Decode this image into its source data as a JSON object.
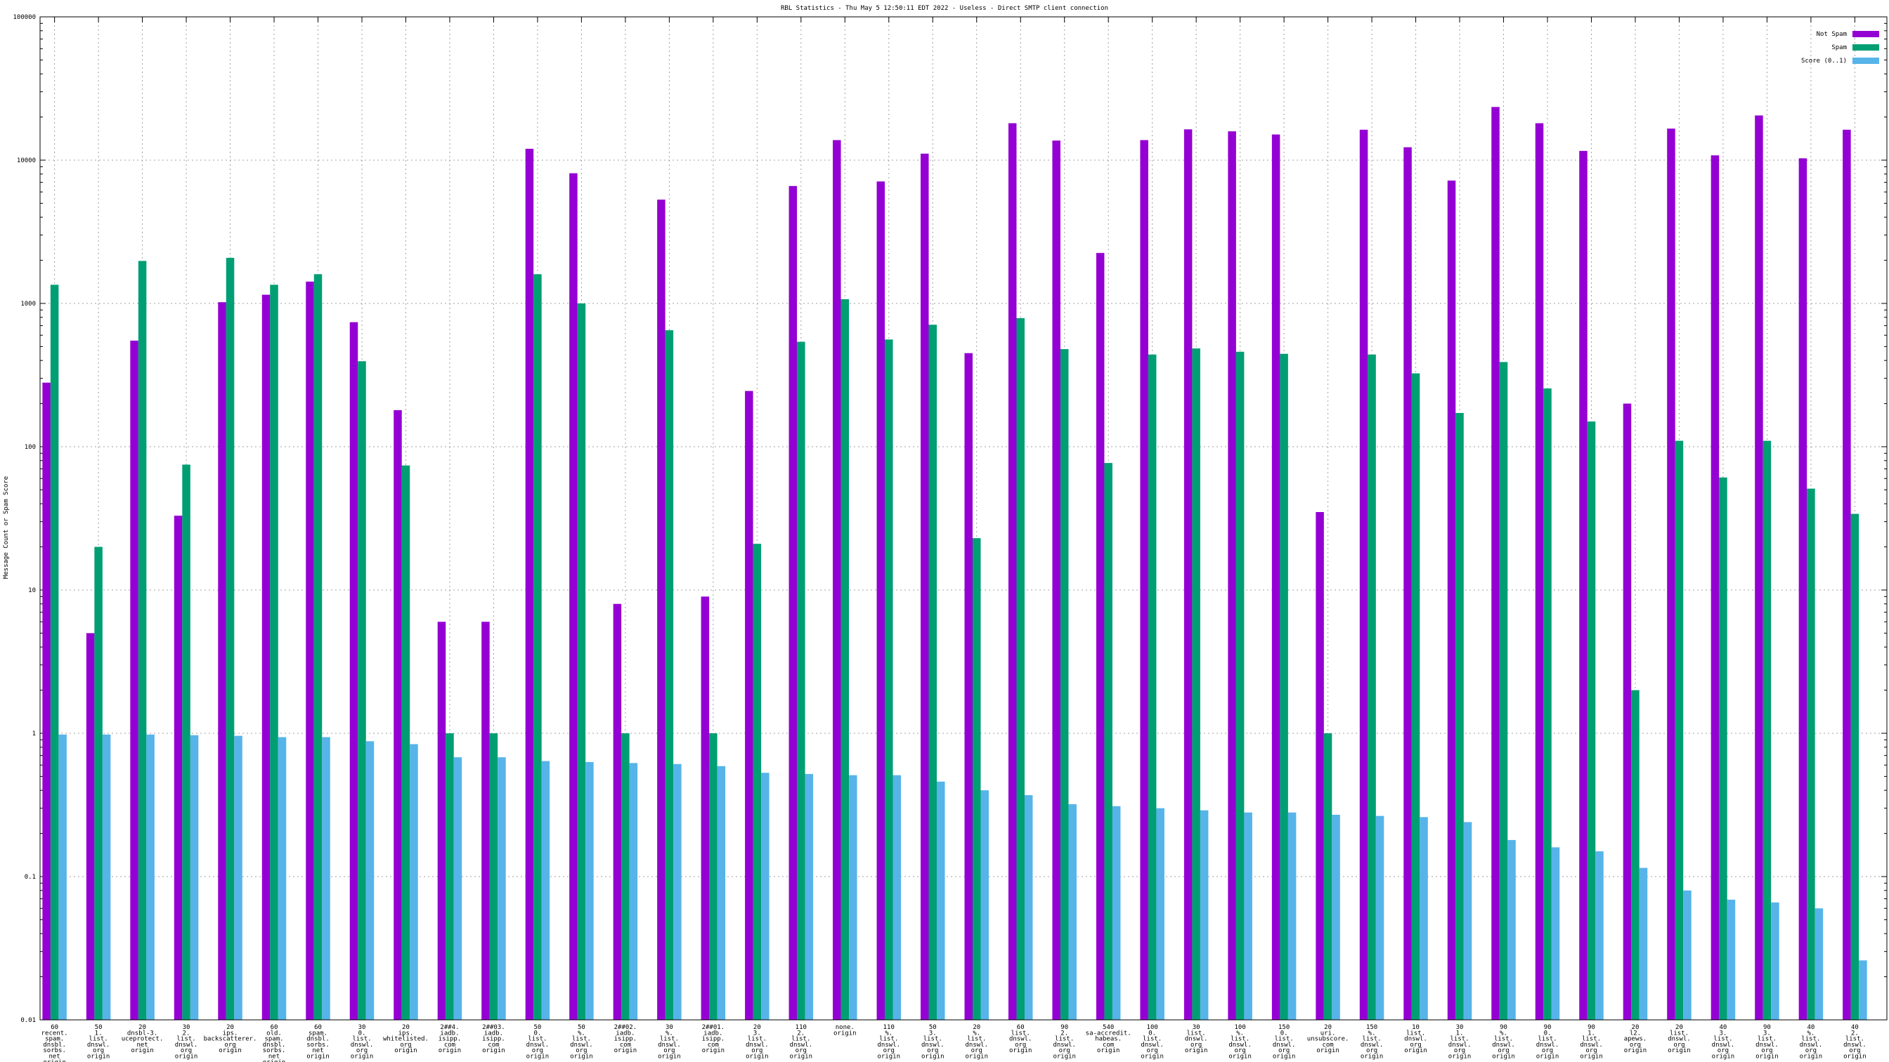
{
  "chart_data": {
    "type": "bar",
    "title": "RBL Statistics - Thu May  5 12:50:11 EDT 2022 - Useless - Direct SMTP client connection",
    "xlabel": "",
    "ylabel": "Message Count or Spam Score",
    "yscale": "log",
    "ylim": [
      0.01,
      100000
    ],
    "yticks": [
      "0.01",
      "0.1",
      "1",
      "10",
      "100",
      "1000",
      "10000",
      "100000"
    ],
    "grid": true,
    "legend_position": "top-right",
    "categories": [
      [
        "60",
        "recent.",
        "spam.",
        "dnsbl.",
        "sorbs.",
        "net",
        "origin"
      ],
      [
        "50",
        "1.",
        "list.",
        "dnswl.",
        "org",
        "origin"
      ],
      [
        "20",
        "dnsbl-3.",
        "uceprotect.",
        "net",
        "origin"
      ],
      [
        "30",
        "2.",
        "list.",
        "dnswl.",
        "org",
        "origin"
      ],
      [
        "20",
        "ips.",
        "backscatterer.",
        "org",
        "origin"
      ],
      [
        "60",
        "old.",
        "spam.",
        "dnsbl.",
        "sorbs.",
        "net",
        "origin"
      ],
      [
        "60",
        "spam.",
        "dnsbl.",
        "sorbs.",
        "net",
        "origin"
      ],
      [
        "30",
        "0.",
        "list.",
        "dnswl.",
        "org",
        "origin"
      ],
      [
        "20",
        "ips.",
        "whitelisted.",
        "org",
        "origin"
      ],
      [
        "2##4.",
        "iadb.",
        "isipp.",
        "com",
        "origin"
      ],
      [
        "2##03.",
        "iadb.",
        "isipp.",
        "com",
        "origin"
      ],
      [
        "50",
        "0.",
        "list.",
        "dnswl.",
        "org",
        "origin"
      ],
      [
        "50",
        "%.",
        "list.",
        "dnswl.",
        "org",
        "origin"
      ],
      [
        "2##02.",
        "iadb.",
        "isipp.",
        "com",
        "origin"
      ],
      [
        "30",
        "%.",
        "list.",
        "dnswl.",
        "org",
        "origin"
      ],
      [
        "2##01.",
        "iadb.",
        "isipp.",
        "com",
        "origin"
      ],
      [
        "20",
        "3.",
        "list.",
        "dnswl.",
        "org",
        "origin"
      ],
      [
        "110",
        "2.",
        "list.",
        "dnswl.",
        "org",
        "origin"
      ],
      [
        "none.",
        "origin"
      ],
      [
        "110",
        "%.",
        "list.",
        "dnswl.",
        "org",
        "origin"
      ],
      [
        "50",
        "3.",
        "list.",
        "dnswl.",
        "org",
        "origin"
      ],
      [
        "20",
        "%.",
        "list.",
        "dnswl.",
        "org",
        "origin"
      ],
      [
        "60",
        "list.",
        "dnswl.",
        "org",
        "origin"
      ],
      [
        "90",
        "2.",
        "list.",
        "dnswl.",
        "org",
        "origin"
      ],
      [
        "540",
        "sa-accredit.",
        "habeas.",
        "com",
        "origin"
      ],
      [
        "100",
        "0.",
        "list.",
        "dnswl.",
        "org",
        "origin"
      ],
      [
        "30",
        "list.",
        "dnswl.",
        "org",
        "origin"
      ],
      [
        "100",
        "%.",
        "list.",
        "dnswl.",
        "org",
        "origin"
      ],
      [
        "150",
        "0.",
        "list.",
        "dnswl.",
        "org",
        "origin"
      ],
      [
        "20",
        "uri.",
        "unsubscore.",
        "com",
        "origin"
      ],
      [
        "150",
        "%.",
        "list.",
        "dnswl.",
        "org",
        "origin"
      ],
      [
        "10",
        "list.",
        "dnswl.",
        "org",
        "origin"
      ],
      [
        "30",
        "1.",
        "list.",
        "dnswl.",
        "org",
        "origin"
      ],
      [
        "90",
        "%.",
        "list.",
        "dnswl.",
        "org",
        "origin"
      ],
      [
        "90",
        "0.",
        "list.",
        "dnswl.",
        "org",
        "origin"
      ],
      [
        "90",
        "1.",
        "list.",
        "dnswl.",
        "org",
        "origin"
      ],
      [
        "20",
        "l2.",
        "apews.",
        "org",
        "origin"
      ],
      [
        "20",
        "list.",
        "dnswl.",
        "org",
        "origin"
      ],
      [
        "40",
        "3.",
        "list.",
        "dnswl.",
        "org",
        "origin"
      ],
      [
        "90",
        "3.",
        "list.",
        "dnswl.",
        "org",
        "origin"
      ],
      [
        "40",
        "%.",
        "list.",
        "dnswl.",
        "org",
        "origin"
      ],
      [
        "40",
        "2.",
        "list.",
        "dnswl.",
        "org",
        "origin"
      ]
    ],
    "series": [
      {
        "name": "Not Spam",
        "color": "#9400d3",
        "values": [
          280,
          5,
          550,
          33,
          1020,
          1150,
          1420,
          740,
          180,
          6,
          6,
          12000,
          8100,
          8,
          5300,
          9,
          245,
          6600,
          13800,
          7100,
          11100,
          450,
          18100,
          13700,
          2250,
          13800,
          16400,
          15900,
          15100,
          35,
          16300,
          12300,
          7200,
          23500,
          18100,
          11600,
          200,
          16600,
          10800,
          20500,
          10300,
          16300
        ]
      },
      {
        "name": "Spam",
        "color": "#009e73",
        "values": [
          1350,
          20,
          1980,
          75,
          2080,
          1350,
          1600,
          395,
          74,
          1,
          1,
          1600,
          1000,
          1,
          650,
          1,
          21,
          540,
          1070,
          560,
          710,
          23,
          790,
          480,
          77,
          440,
          485,
          460,
          445,
          1,
          440,
          325,
          172,
          390,
          255,
          150,
          2,
          110,
          61,
          110,
          51,
          34
        ]
      },
      {
        "name": "Score (0..1)",
        "color": "#56b4e9",
        "values": [
          0.98,
          0.98,
          0.98,
          0.97,
          0.96,
          0.94,
          0.94,
          0.88,
          0.84,
          0.68,
          0.68,
          0.64,
          0.63,
          0.62,
          0.61,
          0.59,
          0.53,
          0.52,
          0.51,
          0.51,
          0.46,
          0.4,
          0.37,
          0.32,
          0.31,
          0.3,
          0.29,
          0.28,
          0.28,
          0.27,
          0.265,
          0.26,
          0.24,
          0.18,
          0.16,
          0.15,
          0.115,
          0.08,
          0.069,
          0.066,
          0.06,
          0.026
        ]
      }
    ]
  }
}
